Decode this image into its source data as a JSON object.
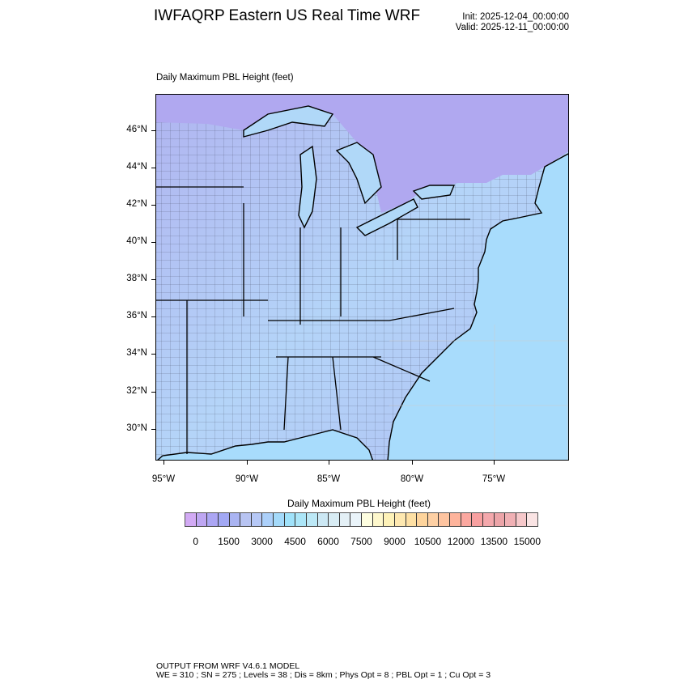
{
  "header": {
    "title": "IWFAQRP Eastern US Real Time WRF",
    "init": "Init: 2025-12-04_00:00:00",
    "valid": "Valid: 2025-12-11_00:00:00"
  },
  "plot": {
    "subtitle": "Daily Maximum PBL Height   (feet)",
    "lat_labels": [
      "46°N",
      "44°N",
      "42°N",
      "40°N",
      "38°N",
      "36°N",
      "34°N",
      "32°N",
      "30°N"
    ],
    "lon_labels": [
      "95°W",
      "90°W",
      "85°W",
      "80°W",
      "75°W"
    ],
    "field_colors": {
      "land": "#b4c4f4",
      "ocean": "#a8dcfc",
      "lakes": "#b0d8f8"
    }
  },
  "colorbar": {
    "title": "Daily Maximum PBL Height  (feet)",
    "labels": [
      "0",
      "1500",
      "3000",
      "4500",
      "6000",
      "7500",
      "9000",
      "10500",
      "12000",
      "13500",
      "15000"
    ],
    "levels_min": 0,
    "levels_max": 15000,
    "levels_step": 500,
    "colors": [
      "#d2aaf4",
      "#bea6f2",
      "#aca6f4",
      "#a2a8f4",
      "#aab4f2",
      "#b8c4f2",
      "#b6c8f6",
      "#acd0fa",
      "#a4dafa",
      "#a0e2fa",
      "#ace6f8",
      "#bce8f6",
      "#cce8f4",
      "#d8ecf4",
      "#e4f0f6",
      "#eaf4fa",
      "#fefee0",
      "#fef8cc",
      "#fef2b8",
      "#fee8b0",
      "#fee0a4",
      "#fed49c",
      "#fed0a4",
      "#fec4a0",
      "#feb49c",
      "#fca8a0",
      "#f8a0a0",
      "#f4a8ac",
      "#eca4a8",
      "#f0b0b4",
      "#f6c8ca",
      "#fae4e4"
    ]
  },
  "footer": {
    "line1": "OUTPUT FROM WRF V4.6.1 MODEL",
    "line2": "WE = 310 ; SN = 275 ; Levels = 38 ; Dis = 8km ; Phys Opt = 8 ; PBL Opt = 1 ; Cu Opt = 3"
  }
}
